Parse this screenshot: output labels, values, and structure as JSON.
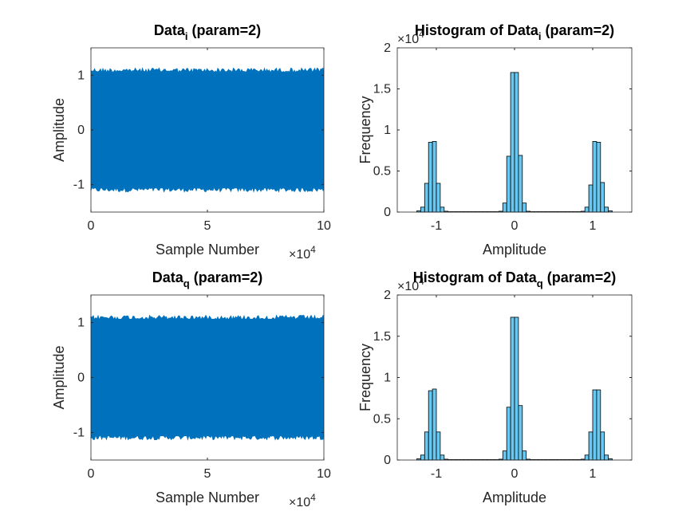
{
  "chart_data": [
    {
      "type": "line",
      "title_main": "Data",
      "title_sub": "i",
      "title_rest": " (param=2)",
      "xlabel": "Sample Number",
      "ylabel": "Amplitude",
      "xlim": [
        0,
        100000
      ],
      "ylim": [
        -1.5,
        1.5
      ],
      "x_ticks": [
        "0",
        "5",
        "10"
      ],
      "x_tick_values": [
        0,
        50000,
        100000
      ],
      "x_exponent_base": "×10",
      "x_exponent_power": "4",
      "y_ticks": [
        "-1",
        "0",
        "1"
      ],
      "y_tick_values": [
        -1,
        0,
        1
      ],
      "series": [
        {
          "color": "#0072BD",
          "envelope": [
            -1.12,
            1.12
          ],
          "description_levels": [
            -1,
            0,
            1
          ]
        }
      ]
    },
    {
      "type": "bar",
      "title_main": "Histogram of Data",
      "title_sub": "i",
      "title_rest": " (param=2)",
      "xlabel": "Amplitude",
      "ylabel": "Frequency",
      "xlim": [
        -1.5,
        1.5
      ],
      "ylim": [
        0,
        20000
      ],
      "x_ticks": [
        "-1",
        "0",
        "1"
      ],
      "x_tick_values": [
        -1,
        0,
        1
      ],
      "y_ticks": [
        "0",
        "0.5",
        "1",
        "1.5",
        "2"
      ],
      "y_tick_values": [
        0,
        5000,
        10000,
        15000,
        20000
      ],
      "y_exponent_base": "×10",
      "y_exponent_power": "4",
      "bar_color": "#4DBEEE",
      "bin_width": 0.05,
      "bins": [
        {
          "x": -1.225,
          "y": 150
        },
        {
          "x": -1.175,
          "y": 600
        },
        {
          "x": -1.125,
          "y": 3500
        },
        {
          "x": -1.075,
          "y": 8500
        },
        {
          "x": -1.025,
          "y": 8600
        },
        {
          "x": -0.975,
          "y": 3500
        },
        {
          "x": -0.925,
          "y": 600
        },
        {
          "x": -0.875,
          "y": 100
        },
        {
          "x": -0.825,
          "y": 50
        },
        {
          "x": -0.775,
          "y": 50
        },
        {
          "x": -0.725,
          "y": 50
        },
        {
          "x": -0.675,
          "y": 50
        },
        {
          "x": -0.625,
          "y": 50
        },
        {
          "x": -0.575,
          "y": 50
        },
        {
          "x": -0.525,
          "y": 50
        },
        {
          "x": -0.475,
          "y": 50
        },
        {
          "x": -0.425,
          "y": 50
        },
        {
          "x": -0.375,
          "y": 50
        },
        {
          "x": -0.325,
          "y": 50
        },
        {
          "x": -0.275,
          "y": 50
        },
        {
          "x": -0.225,
          "y": 50
        },
        {
          "x": -0.175,
          "y": 100
        },
        {
          "x": -0.125,
          "y": 1100
        },
        {
          "x": -0.075,
          "y": 6800
        },
        {
          "x": -0.025,
          "y": 17000
        },
        {
          "x": 0.025,
          "y": 17000
        },
        {
          "x": 0.075,
          "y": 6900
        },
        {
          "x": 0.125,
          "y": 1100
        },
        {
          "x": 0.175,
          "y": 100
        },
        {
          "x": 0.225,
          "y": 50
        },
        {
          "x": 0.275,
          "y": 50
        },
        {
          "x": 0.325,
          "y": 50
        },
        {
          "x": 0.375,
          "y": 50
        },
        {
          "x": 0.425,
          "y": 50
        },
        {
          "x": 0.475,
          "y": 50
        },
        {
          "x": 0.525,
          "y": 50
        },
        {
          "x": 0.575,
          "y": 50
        },
        {
          "x": 0.625,
          "y": 50
        },
        {
          "x": 0.675,
          "y": 50
        },
        {
          "x": 0.725,
          "y": 50
        },
        {
          "x": 0.775,
          "y": 50
        },
        {
          "x": 0.825,
          "y": 50
        },
        {
          "x": 0.875,
          "y": 100
        },
        {
          "x": 0.925,
          "y": 600
        },
        {
          "x": 0.975,
          "y": 3300
        },
        {
          "x": 1.025,
          "y": 8600
        },
        {
          "x": 1.075,
          "y": 8500
        },
        {
          "x": 1.125,
          "y": 3600
        },
        {
          "x": 1.175,
          "y": 600
        },
        {
          "x": 1.225,
          "y": 150
        }
      ]
    },
    {
      "type": "line",
      "title_main": "Data",
      "title_sub": "q",
      "title_rest": " (param=2)",
      "xlabel": "Sample Number",
      "ylabel": "Amplitude",
      "xlim": [
        0,
        100000
      ],
      "ylim": [
        -1.5,
        1.5
      ],
      "x_ticks": [
        "0",
        "5",
        "10"
      ],
      "x_tick_values": [
        0,
        50000,
        100000
      ],
      "x_exponent_base": "×10",
      "x_exponent_power": "4",
      "y_ticks": [
        "-1",
        "0",
        "1"
      ],
      "y_tick_values": [
        -1,
        0,
        1
      ],
      "series": [
        {
          "color": "#0072BD",
          "envelope": [
            -1.12,
            1.12
          ],
          "description_levels": [
            -1,
            0,
            1
          ]
        }
      ]
    },
    {
      "type": "bar",
      "title_main": "Histogram of Data",
      "title_sub": "q",
      "title_rest": " (param=2)",
      "xlabel": "Amplitude",
      "ylabel": "Frequency",
      "xlim": [
        -1.5,
        1.5
      ],
      "ylim": [
        0,
        20000
      ],
      "x_ticks": [
        "-1",
        "0",
        "1"
      ],
      "x_tick_values": [
        -1,
        0,
        1
      ],
      "y_ticks": [
        "0",
        "0.5",
        "1",
        "1.5",
        "2"
      ],
      "y_tick_values": [
        0,
        5000,
        10000,
        15000,
        20000
      ],
      "y_exponent_base": "×10",
      "y_exponent_power": "4",
      "bar_color": "#4DBEEE",
      "bin_width": 0.05,
      "bins": [
        {
          "x": -1.225,
          "y": 150
        },
        {
          "x": -1.175,
          "y": 600
        },
        {
          "x": -1.125,
          "y": 3400
        },
        {
          "x": -1.075,
          "y": 8400
        },
        {
          "x": -1.025,
          "y": 8600
        },
        {
          "x": -0.975,
          "y": 3400
        },
        {
          "x": -0.925,
          "y": 600
        },
        {
          "x": -0.875,
          "y": 100
        },
        {
          "x": -0.825,
          "y": 50
        },
        {
          "x": -0.775,
          "y": 50
        },
        {
          "x": -0.725,
          "y": 50
        },
        {
          "x": -0.675,
          "y": 50
        },
        {
          "x": -0.625,
          "y": 50
        },
        {
          "x": -0.575,
          "y": 50
        },
        {
          "x": -0.525,
          "y": 50
        },
        {
          "x": -0.475,
          "y": 50
        },
        {
          "x": -0.425,
          "y": 50
        },
        {
          "x": -0.375,
          "y": 50
        },
        {
          "x": -0.325,
          "y": 50
        },
        {
          "x": -0.275,
          "y": 50
        },
        {
          "x": -0.225,
          "y": 50
        },
        {
          "x": -0.175,
          "y": 100
        },
        {
          "x": -0.125,
          "y": 1100
        },
        {
          "x": -0.075,
          "y": 6400
        },
        {
          "x": -0.025,
          "y": 17300
        },
        {
          "x": 0.025,
          "y": 17300
        },
        {
          "x": 0.075,
          "y": 6600
        },
        {
          "x": 0.125,
          "y": 1100
        },
        {
          "x": 0.175,
          "y": 100
        },
        {
          "x": 0.225,
          "y": 50
        },
        {
          "x": 0.275,
          "y": 50
        },
        {
          "x": 0.325,
          "y": 50
        },
        {
          "x": 0.375,
          "y": 50
        },
        {
          "x": 0.425,
          "y": 50
        },
        {
          "x": 0.475,
          "y": 50
        },
        {
          "x": 0.525,
          "y": 50
        },
        {
          "x": 0.575,
          "y": 50
        },
        {
          "x": 0.625,
          "y": 50
        },
        {
          "x": 0.675,
          "y": 50
        },
        {
          "x": 0.725,
          "y": 50
        },
        {
          "x": 0.775,
          "y": 50
        },
        {
          "x": 0.825,
          "y": 50
        },
        {
          "x": 0.875,
          "y": 100
        },
        {
          "x": 0.925,
          "y": 600
        },
        {
          "x": 0.975,
          "y": 3400
        },
        {
          "x": 1.025,
          "y": 8500
        },
        {
          "x": 1.075,
          "y": 8500
        },
        {
          "x": 1.125,
          "y": 3400
        },
        {
          "x": 1.175,
          "y": 600
        },
        {
          "x": 1.225,
          "y": 150
        }
      ]
    }
  ]
}
